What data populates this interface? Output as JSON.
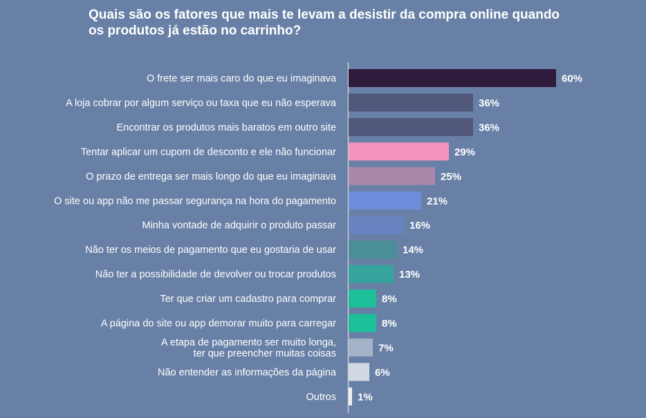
{
  "chart_data": {
    "type": "bar",
    "orientation": "horizontal",
    "title": "Quais são os fatores que mais te levam a desistir da compra online quando os produtos já estão no carrinho?",
    "categories": [
      "O frete ser mais caro do que eu imaginava",
      "A loja cobrar por algum serviço ou taxa que eu não esperava",
      "Encontrar os produtos mais baratos em outro site",
      "Tentar aplicar um cupom de desconto e ele não funcionar",
      "O prazo de entrega ser mais longo do que eu imaginava",
      "O site ou app não me passar segurança na hora do pagamento",
      "Minha vontade de adquirir o produto passar",
      "Não ter os meios de pagamento que eu gostaria de usar",
      "Não ter a possibilidade de devolver ou trocar produtos",
      "Ter que criar um cadastro para comprar",
      "A página do site ou app demorar muito para carregar",
      "A etapa de pagamento ser muito longa,\nter que preencher muitas coisas",
      "Não entender as informações da página",
      "Outros"
    ],
    "values": [
      60,
      36,
      36,
      29,
      25,
      21,
      16,
      14,
      13,
      8,
      8,
      7,
      6,
      1
    ],
    "value_labels": [
      "60%",
      "36%",
      "36%",
      "29%",
      "25%",
      "21%",
      "16%",
      "14%",
      "13%",
      "8%",
      "8%",
      "7%",
      "6%",
      "1%"
    ],
    "colors": [
      "#2f1b3c",
      "#50577b",
      "#50577b",
      "#f592bd",
      "#aa88ac",
      "#6d8ddb",
      "#6784c0",
      "#4a8f98",
      "#36a39d",
      "#1dbf98",
      "#1dbf98",
      "#a5b2c8",
      "#d2d8e3",
      "#eeeeee"
    ],
    "unit": "%",
    "xlim": [
      0,
      60
    ],
    "grid": false,
    "legend": "none",
    "background": "#6880a6"
  }
}
